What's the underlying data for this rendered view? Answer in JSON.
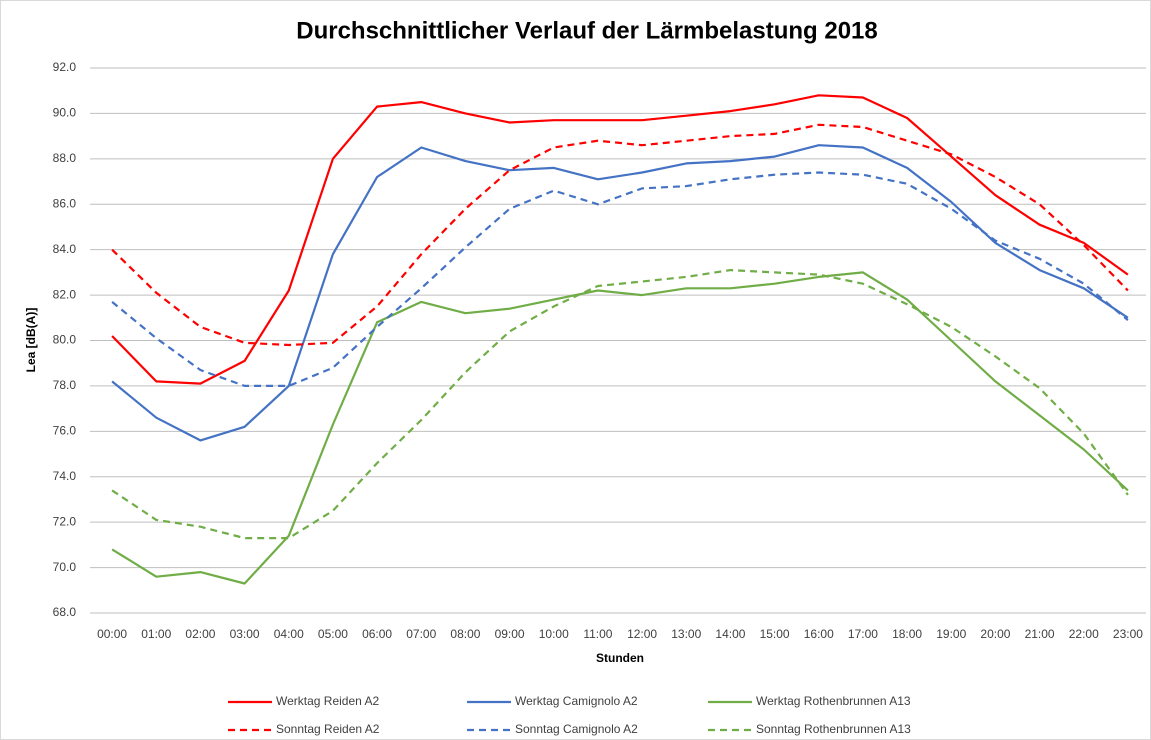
{
  "chart_data": {
    "type": "line",
    "title": "Durchschnittlicher Verlauf der Lärmbelastung 2018",
    "x_label": "Stunden",
    "y_label": "Lea [dB(A)]",
    "categories": [
      "00:00",
      "01:00",
      "02:00",
      "03:00",
      "04:00",
      "05:00",
      "06:00",
      "07:00",
      "08:00",
      "09:00",
      "10:00",
      "11:00",
      "12:00",
      "13:00",
      "14:00",
      "15:00",
      "16:00",
      "17:00",
      "18:00",
      "19:00",
      "20:00",
      "21:00",
      "22:00",
      "23:00"
    ],
    "ylim": [
      68,
      92
    ],
    "yticks": [
      {
        "value": 68,
        "label": "68.0"
      },
      {
        "value": 70,
        "label": "70.0"
      },
      {
        "value": 72,
        "label": "72.0"
      },
      {
        "value": 74,
        "label": "74.0"
      },
      {
        "value": 76,
        "label": "76.0"
      },
      {
        "value": 78,
        "label": "78.0"
      },
      {
        "value": 80,
        "label": "80.0"
      },
      {
        "value": 82,
        "label": "82.0"
      },
      {
        "value": 84,
        "label": "84.0"
      },
      {
        "value": 86,
        "label": "86.0"
      },
      {
        "value": 88,
        "label": "88.0"
      },
      {
        "value": 90,
        "label": "90.0"
      },
      {
        "value": 92,
        "label": "92.0"
      }
    ],
    "grid": true,
    "legend": "bottom",
    "series": [
      {
        "name": "Werktag Reiden A2",
        "color": "#ff0000",
        "dashed": false,
        "values": [
          80.2,
          78.2,
          78.1,
          79.1,
          82.2,
          88.0,
          90.3,
          90.5,
          90.0,
          89.6,
          89.7,
          89.7,
          89.7,
          89.9,
          90.1,
          90.4,
          90.8,
          90.7,
          89.8,
          88.1,
          86.4,
          85.1,
          84.3,
          82.9
        ]
      },
      {
        "name": "Werktag Camignolo A2",
        "color": "#4472c4",
        "dashed": false,
        "values": [
          78.2,
          76.6,
          75.6,
          76.2,
          78.0,
          83.8,
          87.2,
          88.5,
          87.9,
          87.5,
          87.6,
          87.1,
          87.4,
          87.8,
          87.9,
          88.1,
          88.6,
          88.5,
          87.6,
          86.1,
          84.3,
          83.1,
          82.3,
          81.0
        ]
      },
      {
        "name": "Werktag Rothenbrunnen A13",
        "color": "#70ad47",
        "dashed": false,
        "values": [
          70.8,
          69.6,
          69.8,
          69.3,
          71.4,
          76.3,
          80.8,
          81.7,
          81.2,
          81.4,
          81.8,
          82.2,
          82.0,
          82.3,
          82.3,
          82.5,
          82.8,
          83.0,
          81.8,
          80.0,
          78.2,
          76.7,
          75.2,
          73.4
        ]
      },
      {
        "name": "Sonntag Reiden A2",
        "color": "#ff0000",
        "dashed": true,
        "values": [
          84.0,
          82.1,
          80.6,
          79.9,
          79.8,
          79.9,
          81.5,
          83.8,
          85.8,
          87.5,
          88.5,
          88.8,
          88.6,
          88.8,
          89.0,
          89.1,
          89.5,
          89.4,
          88.8,
          88.2,
          87.2,
          86.0,
          84.2,
          82.2
        ]
      },
      {
        "name": "Sonntag Camignolo A2",
        "color": "#4472c4",
        "dashed": true,
        "values": [
          81.7,
          80.1,
          78.7,
          78.0,
          78.0,
          78.8,
          80.6,
          82.3,
          84.1,
          85.8,
          86.6,
          86.0,
          86.7,
          86.8,
          87.1,
          87.3,
          87.4,
          87.3,
          86.9,
          85.8,
          84.4,
          83.6,
          82.5,
          80.9
        ]
      },
      {
        "name": "Sonntag Rothenbrunnen A13",
        "color": "#70ad47",
        "dashed": true,
        "values": [
          73.4,
          72.1,
          71.8,
          71.3,
          71.3,
          72.5,
          74.6,
          76.5,
          78.6,
          80.4,
          81.5,
          82.4,
          82.6,
          82.8,
          83.1,
          83.0,
          82.9,
          82.5,
          81.6,
          80.6,
          79.3,
          77.9,
          75.9,
          73.2
        ]
      }
    ]
  }
}
